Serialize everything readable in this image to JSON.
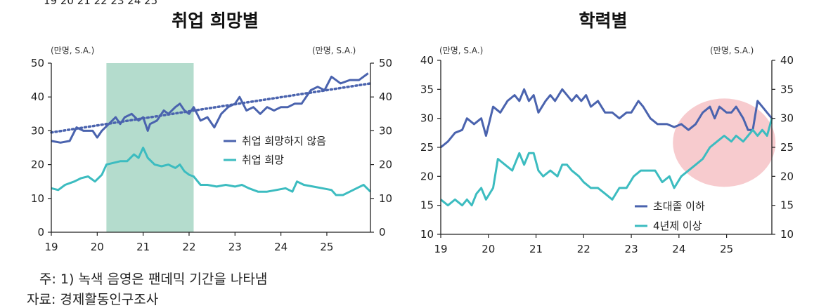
{
  "top_clip_text": "19      20      21      22      23      24      25",
  "colors": {
    "dark": "#4a63ae",
    "light": "#3cbcc0",
    "pandemic": "#b4dccd",
    "highlight": "#f4b9bd",
    "axis": "#222222"
  },
  "footnote": "주: 1) 녹색 음영은 팬데믹 기간을 나타냄",
  "source": "자료: 경제활동인구조사",
  "chart_data": [
    {
      "type": "line",
      "title": "취업 희망별",
      "unit_left": "(만명, S.A.)",
      "unit_right": "(만명, S.A.)",
      "x_ticks": [
        "19",
        "20",
        "21",
        "22",
        "23",
        "24",
        "25"
      ],
      "y_ticks": [
        "0",
        "10",
        "20",
        "30",
        "40",
        "50"
      ],
      "ylim": [
        0,
        50
      ],
      "xlim": [
        2019,
        2025.95
      ],
      "shaded_period": [
        2020.2,
        2022.1
      ],
      "series": [
        {
          "name": "취업 희망하지 않음",
          "color": "#4a63ae",
          "x": [
            2019.0,
            2019.2,
            2019.4,
            2019.55,
            2019.7,
            2019.9,
            2020.0,
            2020.1,
            2020.25,
            2020.4,
            2020.5,
            2020.6,
            2020.75,
            2020.9,
            2021.0,
            2021.1,
            2021.15,
            2021.3,
            2021.45,
            2021.55,
            2021.7,
            2021.8,
            2021.9,
            2022.0,
            2022.1,
            2022.25,
            2022.4,
            2022.55,
            2022.7,
            2022.85,
            2023.0,
            2023.1,
            2023.25,
            2023.4,
            2023.55,
            2023.7,
            2023.85,
            2024.0,
            2024.15,
            2024.3,
            2024.45,
            2024.55,
            2024.65,
            2024.8,
            2024.95,
            2025.1,
            2025.3,
            2025.5,
            2025.7,
            2025.9
          ],
          "values": [
            27,
            26.5,
            27,
            31,
            30,
            30,
            28,
            30,
            32,
            34,
            32,
            34,
            35,
            33,
            34,
            30,
            32,
            33,
            36,
            35,
            37,
            38,
            36,
            35,
            37,
            33,
            34,
            31,
            35,
            37,
            38,
            40,
            36,
            37,
            35,
            37,
            36,
            37,
            37,
            38,
            38,
            40,
            42,
            43,
            42,
            46,
            44,
            45,
            45,
            47
          ]
        },
        {
          "name": "취업 희망",
          "color": "#3cbcc0",
          "x": [
            2019.0,
            2019.15,
            2019.3,
            2019.5,
            2019.65,
            2019.8,
            2019.95,
            2020.1,
            2020.2,
            2020.35,
            2020.5,
            2020.65,
            2020.8,
            2020.9,
            2021.0,
            2021.1,
            2021.25,
            2021.4,
            2021.55,
            2021.7,
            2021.8,
            2021.9,
            2022.0,
            2022.1,
            2022.25,
            2022.4,
            2022.6,
            2022.8,
            2023.0,
            2023.15,
            2023.3,
            2023.5,
            2023.7,
            2023.9,
            2024.1,
            2024.25,
            2024.35,
            2024.5,
            2024.7,
            2024.9,
            2025.1,
            2025.2,
            2025.35,
            2025.5,
            2025.65,
            2025.8,
            2025.95
          ],
          "values": [
            13,
            12.5,
            14,
            15,
            16,
            16.5,
            15,
            17,
            20,
            20.5,
            21,
            21,
            23,
            22,
            25,
            22,
            20,
            19.5,
            20,
            19,
            20,
            18,
            17,
            16.5,
            14,
            14,
            13.5,
            14,
            13.5,
            14,
            13,
            12,
            12,
            12.5,
            13,
            12,
            15,
            14,
            13.5,
            13,
            12.5,
            11,
            11,
            12,
            13,
            14,
            12
          ]
        }
      ],
      "trend": {
        "name": "trend",
        "x": [
          2019.0,
          2025.95
        ],
        "values": [
          29.5,
          44
        ]
      }
    },
    {
      "type": "line",
      "title": "학력별",
      "unit_left": "(만명, S.A.)",
      "unit_right": "(만명, S.A.)",
      "x_ticks": [
        "19",
        "20",
        "21",
        "22",
        "23",
        "24",
        "25"
      ],
      "y_ticks": [
        "10",
        "15",
        "20",
        "25",
        "30",
        "35",
        "40"
      ],
      "ylim": [
        10,
        40
      ],
      "xlim": [
        2019,
        2025.95
      ],
      "highlight_center": [
        2024.95,
        25.8
      ],
      "series": [
        {
          "name": "초대졸 이하",
          "color": "#4a63ae",
          "x": [
            2019.0,
            2019.15,
            2019.3,
            2019.45,
            2019.55,
            2019.7,
            2019.85,
            2019.95,
            2020.1,
            2020.25,
            2020.4,
            2020.55,
            2020.65,
            2020.75,
            2020.85,
            2020.95,
            2021.05,
            2021.2,
            2021.3,
            2021.4,
            2021.55,
            2021.65,
            2021.75,
            2021.85,
            2021.95,
            2022.05,
            2022.15,
            2022.3,
            2022.45,
            2022.6,
            2022.75,
            2022.9,
            2023.0,
            2023.15,
            2023.25,
            2023.4,
            2023.55,
            2023.75,
            2023.9,
            2024.05,
            2024.2,
            2024.35,
            2024.5,
            2024.65,
            2024.75,
            2024.85,
            2025.0,
            2025.1,
            2025.2,
            2025.35,
            2025.45,
            2025.55,
            2025.65,
            2025.75,
            2025.85,
            2025.95
          ],
          "values": [
            25,
            26,
            27.5,
            28,
            30,
            29,
            30,
            27,
            32,
            31,
            33,
            34,
            33,
            35,
            33,
            34,
            31,
            33,
            34,
            33,
            35,
            34,
            33,
            34,
            33,
            34,
            32,
            33,
            31,
            31,
            30,
            31,
            31,
            33,
            32,
            30,
            29,
            29,
            28.5,
            29,
            28,
            29,
            31,
            32,
            30,
            32,
            31,
            31,
            32,
            30,
            28,
            28,
            33,
            32,
            31,
            30
          ]
        },
        {
          "name": "4년제 이상",
          "color": "#3cbcc0",
          "x": [
            2019.0,
            2019.15,
            2019.3,
            2019.45,
            2019.55,
            2019.65,
            2019.75,
            2019.85,
            2019.95,
            2020.1,
            2020.2,
            2020.35,
            2020.5,
            2020.65,
            2020.75,
            2020.85,
            2020.95,
            2021.05,
            2021.15,
            2021.3,
            2021.45,
            2021.55,
            2021.65,
            2021.75,
            2021.9,
            2022.0,
            2022.15,
            2022.3,
            2022.45,
            2022.6,
            2022.75,
            2022.9,
            2023.05,
            2023.2,
            2023.35,
            2023.5,
            2023.65,
            2023.8,
            2023.9,
            2024.05,
            2024.2,
            2024.35,
            2024.5,
            2024.65,
            2024.8,
            2024.95,
            2025.1,
            2025.2,
            2025.35,
            2025.45,
            2025.55,
            2025.65,
            2025.75,
            2025.85,
            2025.95
          ],
          "values": [
            16,
            15,
            16,
            15,
            16,
            15,
            17,
            18,
            16,
            18,
            23,
            22,
            21,
            24,
            22,
            24,
            24,
            21,
            20,
            21,
            20,
            22,
            22,
            21,
            20,
            19,
            18,
            18,
            17,
            16,
            18,
            18,
            20,
            21,
            21,
            21,
            19,
            20,
            18,
            20,
            21,
            22,
            23,
            25,
            26,
            27,
            26,
            27,
            26,
            27,
            28,
            27,
            28,
            27,
            30
          ]
        }
      ]
    }
  ]
}
